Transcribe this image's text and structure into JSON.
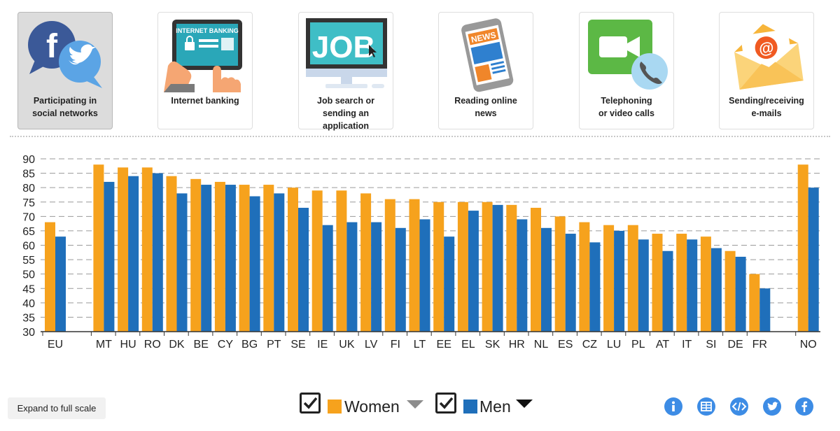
{
  "tabs": [
    {
      "label": "Participating in\nsocial networks",
      "icon": "social-networks-icon",
      "active": true
    },
    {
      "label": "Internet banking",
      "icon": "internet-banking-icon",
      "active": false,
      "icon_text": "INTERNET BANKING"
    },
    {
      "label": "Job search or\nsending an\napplication",
      "icon": "job-search-icon",
      "active": false,
      "icon_text": "JOB"
    },
    {
      "label": "Reading online\nnews",
      "icon": "news-icon",
      "active": false,
      "icon_text": "NEWS"
    },
    {
      "label": "Telephoning\nor video calls",
      "icon": "video-call-icon",
      "active": false
    },
    {
      "label": "Sending/receiving\ne-mails",
      "icon": "email-icon",
      "active": false
    }
  ],
  "legend": {
    "women": "Women",
    "men": "Men"
  },
  "expand_label": "Expand to full scale",
  "social_buttons": [
    "info-icon",
    "table-icon",
    "embed-icon",
    "twitter-icon",
    "facebook-icon"
  ],
  "colors": {
    "women": "#f6a21d",
    "men": "#1f6fba",
    "button": "#3d8ce5"
  },
  "chart_data": {
    "type": "bar",
    "categories": [
      "EU",
      "MT",
      "HU",
      "RO",
      "DK",
      "BE",
      "CY",
      "BG",
      "PT",
      "SE",
      "IE",
      "UK",
      "LV",
      "FI",
      "LT",
      "EE",
      "EL",
      "SK",
      "HR",
      "NL",
      "ES",
      "CZ",
      "LU",
      "PL",
      "AT",
      "IT",
      "SI",
      "DE",
      "FR",
      "NO"
    ],
    "series": [
      {
        "name": "Women",
        "values": [
          68,
          88,
          87,
          87,
          84,
          83,
          82,
          81,
          81,
          80,
          79,
          79,
          78,
          76,
          76,
          75,
          75,
          75,
          74,
          73,
          70,
          68,
          67,
          67,
          64,
          64,
          63,
          58,
          50,
          88
        ]
      },
      {
        "name": "Men",
        "values": [
          63,
          82,
          84,
          85,
          78,
          81,
          81,
          77,
          78,
          73,
          67,
          68,
          68,
          66,
          69,
          63,
          72,
          74,
          69,
          66,
          64,
          61,
          65,
          62,
          58,
          62,
          59,
          56,
          45,
          80
        ]
      }
    ],
    "ylim": [
      30,
      90
    ],
    "yticks": [
      30,
      35,
      40,
      45,
      50,
      55,
      60,
      65,
      70,
      75,
      80,
      85,
      90
    ],
    "grid": true,
    "legend_position": "bottom-center"
  }
}
